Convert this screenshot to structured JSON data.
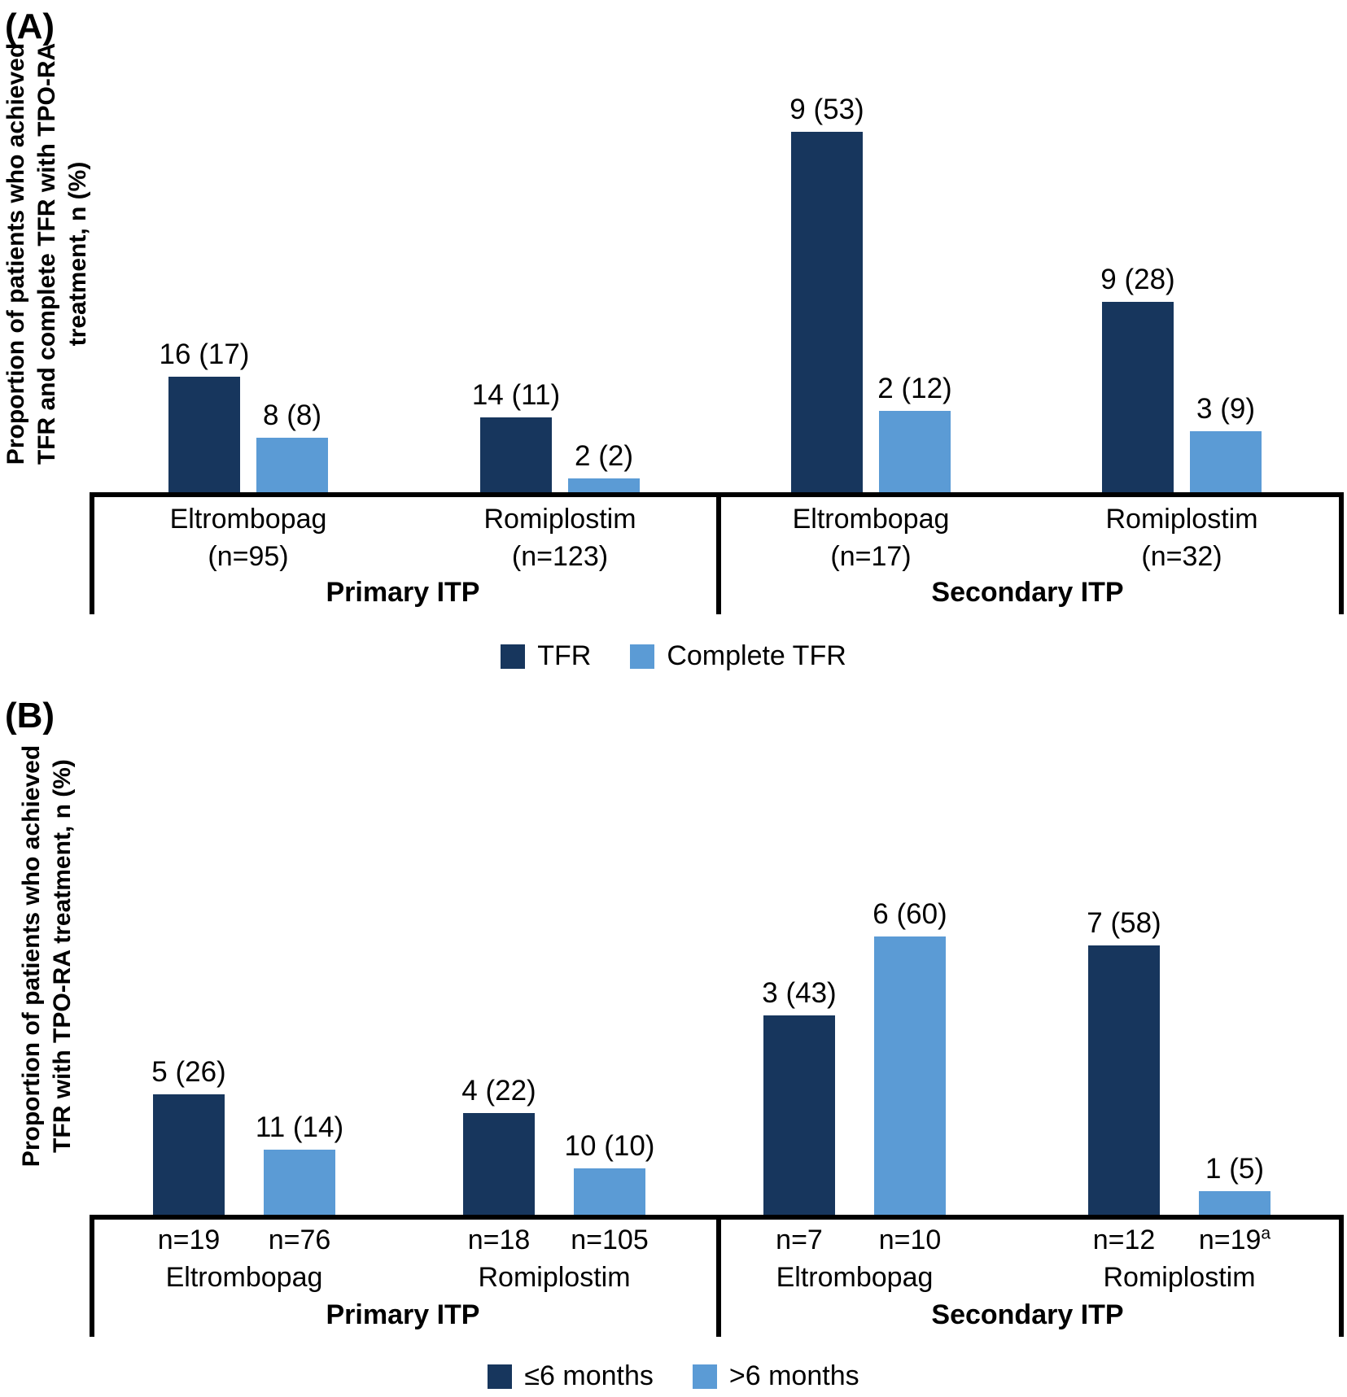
{
  "chart_data": [
    {
      "panel_tag": "(A)",
      "type": "bar",
      "title": "",
      "ylabel": "Proportion of patients who achieved TFR and complete TFR with TPO-RA treatment, n (%)",
      "ylabel_lines": [
        "Proportion of patients who achieved",
        "TFR and complete TFR with TPO-RA",
        "treatment, n (%)"
      ],
      "value_label_format": "n (%)",
      "ylim": [
        0,
        60
      ],
      "gridlines": false,
      "legend_position": "bottom",
      "legend": [
        {
          "label": "TFR",
          "color": "#17365D"
        },
        {
          "label": "Complete TFR",
          "color": "#5B9BD5"
        }
      ],
      "sections": [
        {
          "label": "Primary ITP",
          "groups": [
            {
              "category": "Eltrombopag",
              "n_label": "(n=95)",
              "bars": [
                {
                  "series": "TFR",
                  "n": 16,
                  "pct": 17,
                  "label": "16 (17)"
                },
                {
                  "series": "Complete TFR",
                  "n": 8,
                  "pct": 8,
                  "label": "8 (8)"
                }
              ]
            },
            {
              "category": "Romiplostim",
              "n_label": "(n=123)",
              "bars": [
                {
                  "series": "TFR",
                  "n": 14,
                  "pct": 11,
                  "label": "14 (11)"
                },
                {
                  "series": "Complete TFR",
                  "n": 2,
                  "pct": 2,
                  "label": "2 (2)"
                }
              ]
            }
          ]
        },
        {
          "label": "Secondary ITP",
          "groups": [
            {
              "category": "Eltrombopag",
              "n_label": "(n=17)",
              "bars": [
                {
                  "series": "TFR",
                  "n": 9,
                  "pct": 53,
                  "label": "9 (53)"
                },
                {
                  "series": "Complete TFR",
                  "n": 2,
                  "pct": 12,
                  "label": "2 (12)"
                }
              ]
            },
            {
              "category": "Romiplostim",
              "n_label": "(n=32)",
              "bars": [
                {
                  "series": "TFR",
                  "n": 9,
                  "pct": 28,
                  "label": "9 (28)"
                },
                {
                  "series": "Complete TFR",
                  "n": 3,
                  "pct": 9,
                  "label": "3 (9)"
                }
              ]
            }
          ]
        }
      ]
    },
    {
      "panel_tag": "(B)",
      "type": "bar",
      "title": "",
      "ylabel": "Proportion of patients who achieved TFR with TPO-RA treatment, n (%)",
      "ylabel_lines": [
        "Proportion of patients who achieved",
        "TFR with TPO-RA treatment, n (%)"
      ],
      "value_label_format": "n (%)",
      "ylim": [
        0,
        65
      ],
      "gridlines": false,
      "legend_position": "bottom",
      "legend": [
        {
          "label": "≤6 months",
          "color": "#17365D"
        },
        {
          "label": ">6 months",
          "color": "#5B9BD5"
        }
      ],
      "sections": [
        {
          "label": "Primary ITP",
          "groups": [
            {
              "category": "Eltrombopag",
              "bars": [
                {
                  "series": "≤6 months",
                  "n": 5,
                  "pct": 26,
                  "label": "5 (26)",
                  "n_label": "n=19"
                },
                {
                  "series": ">6 months",
                  "n": 11,
                  "pct": 14,
                  "label": "11 (14)",
                  "n_label": "n=76"
                }
              ]
            },
            {
              "category": "Romiplostim",
              "bars": [
                {
                  "series": "≤6 months",
                  "n": 4,
                  "pct": 22,
                  "label": "4 (22)",
                  "n_label": "n=18"
                },
                {
                  "series": ">6 months",
                  "n": 10,
                  "pct": 10,
                  "label": "10 (10)",
                  "n_label": "n=105"
                }
              ]
            }
          ]
        },
        {
          "label": "Secondary ITP",
          "groups": [
            {
              "category": "Eltrombopag",
              "bars": [
                {
                  "series": "≤6 months",
                  "n": 3,
                  "pct": 43,
                  "label": "3 (43)",
                  "n_label": "n=7"
                },
                {
                  "series": ">6 months",
                  "n": 6,
                  "pct": 60,
                  "label": "6 (60)",
                  "n_label": "n=10"
                }
              ]
            },
            {
              "category": "Romiplostim",
              "bars": [
                {
                  "series": "≤6 months",
                  "n": 7,
                  "pct": 58,
                  "label": "7 (58)",
                  "n_label": "n=12"
                },
                {
                  "series": ">6 months",
                  "n": 1,
                  "pct": 5,
                  "label": "1 (5)",
                  "n_label": "n=19",
                  "n_label_sup": "a"
                }
              ]
            }
          ]
        }
      ]
    }
  ]
}
